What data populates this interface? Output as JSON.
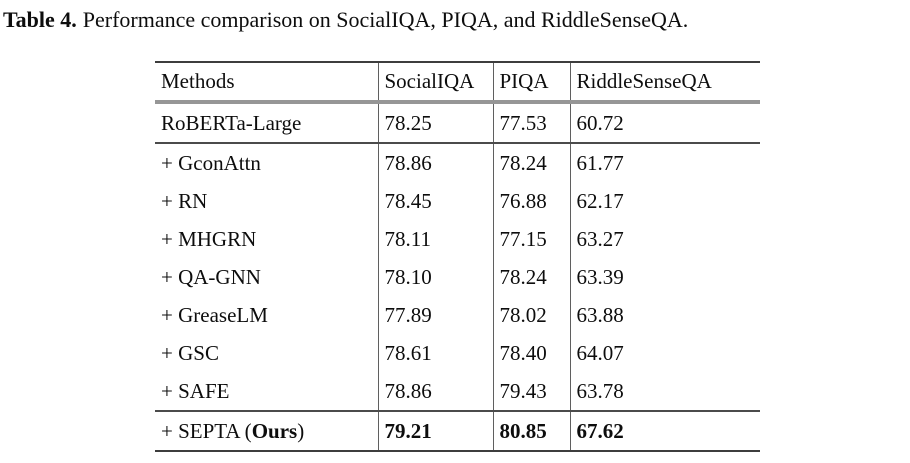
{
  "caption": {
    "label": "Table 4.",
    "text": "Performance comparison on SocialIQA, PIQA, and RiddleSenseQA."
  },
  "table": {
    "columns": [
      {
        "label": "Methods"
      },
      {
        "label": "SocialIQA"
      },
      {
        "label": "PIQA"
      },
      {
        "label": "RiddleSenseQA"
      }
    ],
    "rows": [
      {
        "method": "RoBERTa-Large",
        "socialiqa": "78.25",
        "piqa": "77.53",
        "riddlesenseqa": "60.72"
      },
      {
        "method": "+ GconAttn",
        "socialiqa": "78.86",
        "piqa": "78.24",
        "riddlesenseqa": "61.77"
      },
      {
        "method": "+ RN",
        "socialiqa": "78.45",
        "piqa": "76.88",
        "riddlesenseqa": "62.17"
      },
      {
        "method": "+ MHGRN",
        "socialiqa": "78.11",
        "piqa": "77.15",
        "riddlesenseqa": "63.27"
      },
      {
        "method": "+ QA-GNN",
        "socialiqa": "78.10",
        "piqa": "78.24",
        "riddlesenseqa": "63.39"
      },
      {
        "method": "+ GreaseLM",
        "socialiqa": "77.89",
        "piqa": "78.02",
        "riddlesenseqa": "63.88"
      },
      {
        "method": "+ GSC",
        "socialiqa": "78.61",
        "piqa": "78.40",
        "riddlesenseqa": "64.07"
      },
      {
        "method": "+ SAFE",
        "socialiqa": "78.86",
        "piqa": "79.43",
        "riddlesenseqa": "63.78"
      },
      {
        "method_prefix": "+ SEPTA (",
        "method_bold": "Ours",
        "method_suffix": ")",
        "socialiqa": "79.21",
        "piqa": "80.85",
        "riddlesenseqa": "67.62"
      }
    ]
  },
  "colors": {
    "background": "#ffffff",
    "text": "#0d0d0d",
    "rule_thin": "#4b4b4b",
    "rule_thick": "#969696",
    "rule_vertical": "#5f5f5f"
  }
}
